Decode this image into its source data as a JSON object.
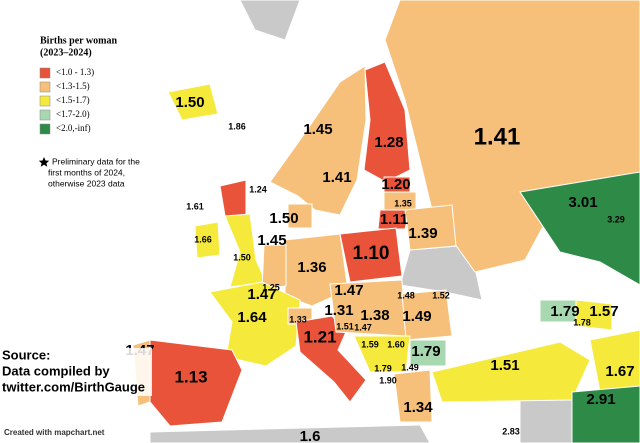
{
  "legend": {
    "title": "Births per woman",
    "subtitle": "(2023–2024)",
    "items": [
      {
        "label": "<1.0 - 1.3)",
        "color": "#e8533a"
      },
      {
        "label": "<1.3-1.5)",
        "color": "#f6c07a"
      },
      {
        "label": "<1.5-1.7)",
        "color": "#f5ea3c"
      },
      {
        "label": "<1.7-2.0)",
        "color": "#a8d8b0"
      },
      {
        "label": "<2.0,-inf)",
        "color": "#2e8b47"
      }
    ]
  },
  "note": [
    "Preliminary data for the",
    "first months of 2024,",
    "otherwise 2023 data"
  ],
  "labels": [
    "1.50",
    "1.86",
    "1.45",
    "1.28",
    "1.41",
    "1.41",
    "1.24",
    "1.20",
    "1.35",
    "1.61",
    "1.50",
    "1.11",
    "1.39",
    "1.66",
    "1.45",
    "1.50",
    "1.10",
    "1.36",
    "1.25",
    "1.47",
    "1.64",
    "1.47",
    "1.48",
    "1.52",
    "1.31",
    "1.38",
    "1.49",
    "1.33",
    "1.51",
    "1.47",
    "1.79",
    "1.57",
    "1.78",
    "1.21",
    "1.59",
    "1.60",
    "1.79",
    "1.47",
    "1.13",
    "1.79",
    "1.90",
    "1.49",
    "1.51",
    "1.67",
    "1.34",
    "2.91",
    "3.01",
    "3.29",
    "2.83",
    "1.6"
  ],
  "source": [
    "Source:",
    "Data compiled by",
    "twitter.com/BirthGauge"
  ],
  "credit": "Created with mapchart.net"
}
